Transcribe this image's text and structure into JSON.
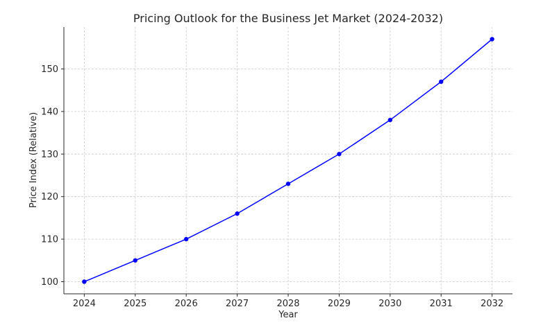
{
  "chart_data": {
    "type": "line",
    "title": "Pricing Outlook for the Business Jet Market (2024-2032)",
    "xlabel": "Year",
    "ylabel": "Price Index (Relative)",
    "x": [
      2024,
      2025,
      2026,
      2027,
      2028,
      2029,
      2030,
      2031,
      2032
    ],
    "x_tick_labels": [
      "2024",
      "2025",
      "2026",
      "2027",
      "2028",
      "2029",
      "2030",
      "2031",
      "2032"
    ],
    "series": [
      {
        "values": [
          100,
          105,
          110,
          116,
          123,
          130,
          138,
          147,
          157
        ]
      }
    ],
    "yticks": [
      100,
      110,
      120,
      130,
      140,
      150
    ],
    "y_tick_labels": [
      "100",
      "110",
      "120",
      "130",
      "140",
      "150"
    ],
    "xlim": [
      2023.6,
      2032.4
    ],
    "ylim": [
      97.15,
      159.85
    ],
    "grid": true,
    "marker": "circle",
    "colors": {
      "line": "#0000ff",
      "marker": "#0000ff"
    }
  }
}
